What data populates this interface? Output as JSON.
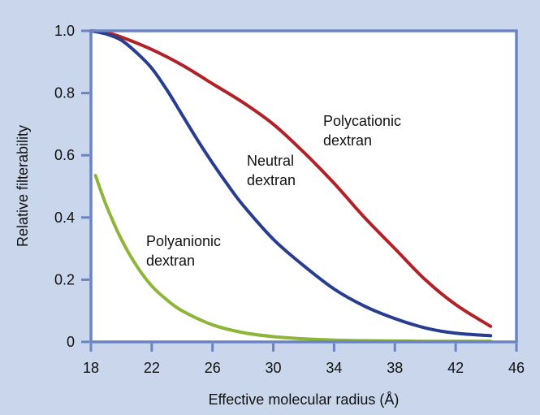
{
  "chart_data": {
    "type": "line",
    "title": "",
    "xlabel": "Effective molecular radius (Å)",
    "ylabel": "Relative filterability",
    "xlim": [
      18,
      46
    ],
    "ylim": [
      0,
      1.0
    ],
    "xticks": [
      18,
      22,
      26,
      30,
      34,
      38,
      42,
      46
    ],
    "yticks": [
      0,
      0.2,
      0.4,
      0.6,
      0.8,
      1.0
    ],
    "xtick_labels": [
      "18",
      "22",
      "26",
      "30",
      "34",
      "38",
      "42",
      "46"
    ],
    "ytick_labels": [
      "0",
      "0.2",
      "0.4",
      "0.6",
      "0.8",
      "1.0"
    ],
    "grid": false,
    "series": [
      {
        "name": "Polycationic dextran",
        "label_lines": [
          "Polycationic",
          "dextran"
        ],
        "color": "#b02128",
        "x": [
          18,
          19,
          20,
          22,
          24,
          26,
          28,
          30,
          32,
          34,
          36,
          38,
          40,
          42,
          44.3
        ],
        "y": [
          1.0,
          0.995,
          0.98,
          0.94,
          0.89,
          0.83,
          0.77,
          0.7,
          0.61,
          0.51,
          0.4,
          0.3,
          0.2,
          0.12,
          0.05
        ]
      },
      {
        "name": "Neutral dextran",
        "label_lines": [
          "Neutral",
          "dextran"
        ],
        "color": "#283d8e",
        "x": [
          18,
          19,
          20,
          21,
          22,
          23,
          24,
          25,
          26,
          27,
          28,
          30,
          32,
          34,
          36,
          38,
          40,
          42,
          44.3
        ],
        "y": [
          1.0,
          0.99,
          0.97,
          0.93,
          0.88,
          0.81,
          0.73,
          0.65,
          0.575,
          0.505,
          0.44,
          0.33,
          0.245,
          0.17,
          0.115,
          0.075,
          0.045,
          0.028,
          0.02
        ]
      },
      {
        "name": "Polyanionic dextran",
        "label_lines": [
          "Polyanionic",
          "dextran"
        ],
        "color": "#8db53a",
        "x": [
          18.3,
          19,
          20,
          21,
          22,
          23,
          24,
          26,
          28,
          30,
          32,
          34,
          36,
          38,
          40,
          42,
          44.3
        ],
        "y": [
          0.535,
          0.44,
          0.33,
          0.245,
          0.18,
          0.135,
          0.1,
          0.055,
          0.03,
          0.017,
          0.01,
          0.006,
          0.004,
          0.003,
          0.002,
          0.002,
          0.002
        ]
      }
    ]
  }
}
